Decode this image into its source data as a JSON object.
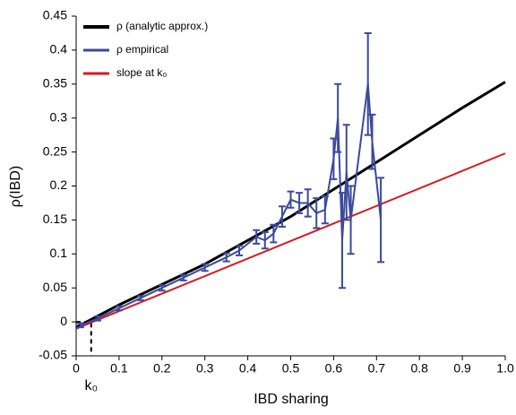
{
  "chart_data": {
    "type": "line",
    "xlabel": "IBD sharing",
    "ylabel": "ρ(IBD)",
    "xlim": [
      0,
      1
    ],
    "ylim": [
      -0.05,
      0.45
    ],
    "xticks": [
      0,
      0.1,
      0.2,
      0.3,
      0.4,
      0.5,
      0.6,
      0.7,
      0.8,
      0.9,
      {
        "value": 1,
        "label": "1.0"
      }
    ],
    "yticks": [
      -0.05,
      0,
      0.05,
      0.1,
      0.15,
      0.2,
      0.25,
      0.3,
      0.35,
      0.4,
      0.45
    ],
    "legend": "upper left",
    "annotation": {
      "text": "k₀",
      "x": 0.035
    },
    "series": [
      {
        "name": "ρ (analytic approx.)",
        "color": "#000000",
        "x": [
          0,
          0.1,
          0.2,
          0.3,
          0.4,
          0.5,
          0.6,
          0.7,
          0.8,
          0.9,
          1.0
        ],
        "values": [
          -0.008,
          0.025,
          0.055,
          0.085,
          0.12,
          0.155,
          0.195,
          0.235,
          0.275,
          0.315,
          0.353
        ]
      },
      {
        "name": "ρ empirical",
        "color": "#3b4a9c",
        "x": [
          0.01,
          0.05,
          0.1,
          0.15,
          0.2,
          0.25,
          0.3,
          0.35,
          0.38,
          0.42,
          0.44,
          0.46,
          0.48,
          0.5,
          0.52,
          0.54,
          0.56,
          0.58,
          0.6,
          0.61,
          0.62,
          0.63,
          0.64,
          0.68,
          0.69,
          0.71
        ],
        "values": [
          -0.005,
          0.005,
          0.02,
          0.035,
          0.05,
          0.065,
          0.08,
          0.095,
          0.105,
          0.125,
          0.12,
          0.13,
          0.155,
          0.18,
          0.175,
          0.175,
          0.16,
          0.165,
          0.24,
          0.3,
          0.12,
          0.22,
          0.15,
          0.35,
          0.265,
          0.15
        ],
        "errors": [
          0.003,
          0.003,
          0.003,
          0.003,
          0.004,
          0.004,
          0.005,
          0.006,
          0.007,
          0.01,
          0.012,
          0.013,
          0.015,
          0.012,
          0.015,
          0.02,
          0.022,
          0.02,
          0.03,
          0.05,
          0.07,
          0.07,
          0.05,
          0.075,
          0.04,
          0.062
        ]
      },
      {
        "name": "slope at k₀",
        "color": "#d7191c",
        "x": [
          0,
          1
        ],
        "values": [
          -0.01,
          0.248
        ]
      }
    ]
  }
}
